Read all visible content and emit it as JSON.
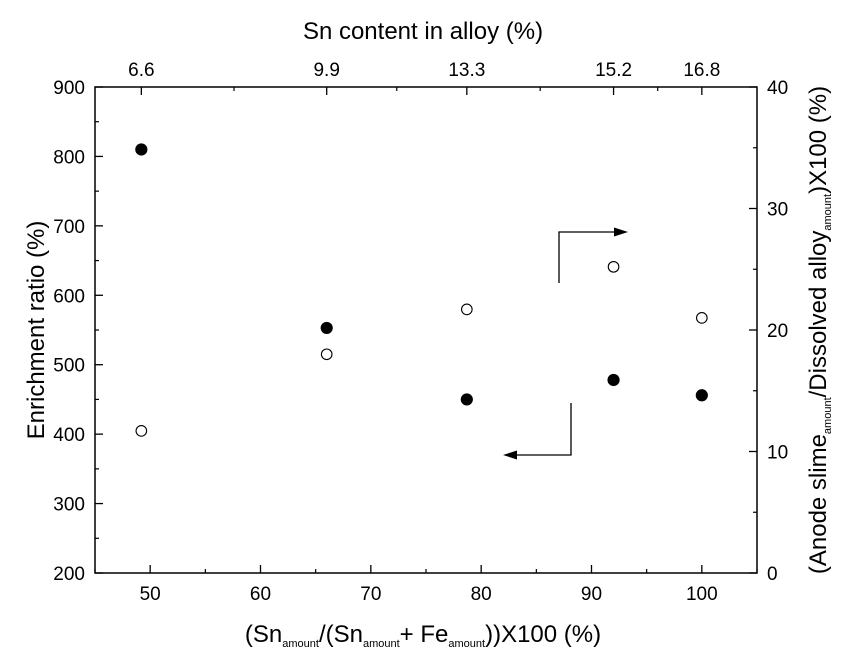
{
  "chart_data": {
    "type": "scatter",
    "top_axis": {
      "label": "Sn content in alloy (%)",
      "ticks": [
        {
          "x": 49.2,
          "label": "6.6"
        },
        {
          "x": 66.0,
          "label": "9.9"
        },
        {
          "x": 78.7,
          "label": "13.3"
        },
        {
          "x": 92.0,
          "label": "15.2"
        },
        {
          "x": 100.0,
          "label": "16.8"
        }
      ]
    },
    "x_axis": {
      "label_parts": [
        "(Sn",
        "amount",
        "/(Sn",
        "amount",
        "+ Fe",
        "amount",
        "))X100 (%)"
      ],
      "xlim": [
        45,
        105
      ],
      "ticks": [
        50,
        60,
        70,
        80,
        90,
        100
      ]
    },
    "y_left": {
      "label": "Enrichment ratio (%)",
      "ylim": [
        200,
        900
      ],
      "ticks": [
        200,
        300,
        400,
        500,
        600,
        700,
        800,
        900
      ]
    },
    "y_right": {
      "label_parts": [
        "(Anode slime",
        "amount",
        "/Dissolved alloy",
        "amount",
        ")X100 (%)"
      ],
      "ylim": [
        0,
        40
      ],
      "ticks": [
        0,
        10,
        20,
        30,
        40
      ]
    },
    "series": [
      {
        "marker": "filled-circle",
        "axis": "left",
        "x": [
          49.2,
          66.0,
          78.7,
          92.0,
          100.0
        ],
        "y": [
          810,
          553,
          450,
          478,
          456
        ],
        "fit_curve": true
      },
      {
        "marker": "open-circle",
        "axis": "right",
        "x": [
          49.2,
          66.0,
          78.7,
          92.0,
          100.0
        ],
        "y": [
          11.7,
          18.0,
          21.7,
          25.2,
          21.0
        ],
        "fit_curve": true
      }
    ],
    "legend": "none",
    "grid": false
  }
}
